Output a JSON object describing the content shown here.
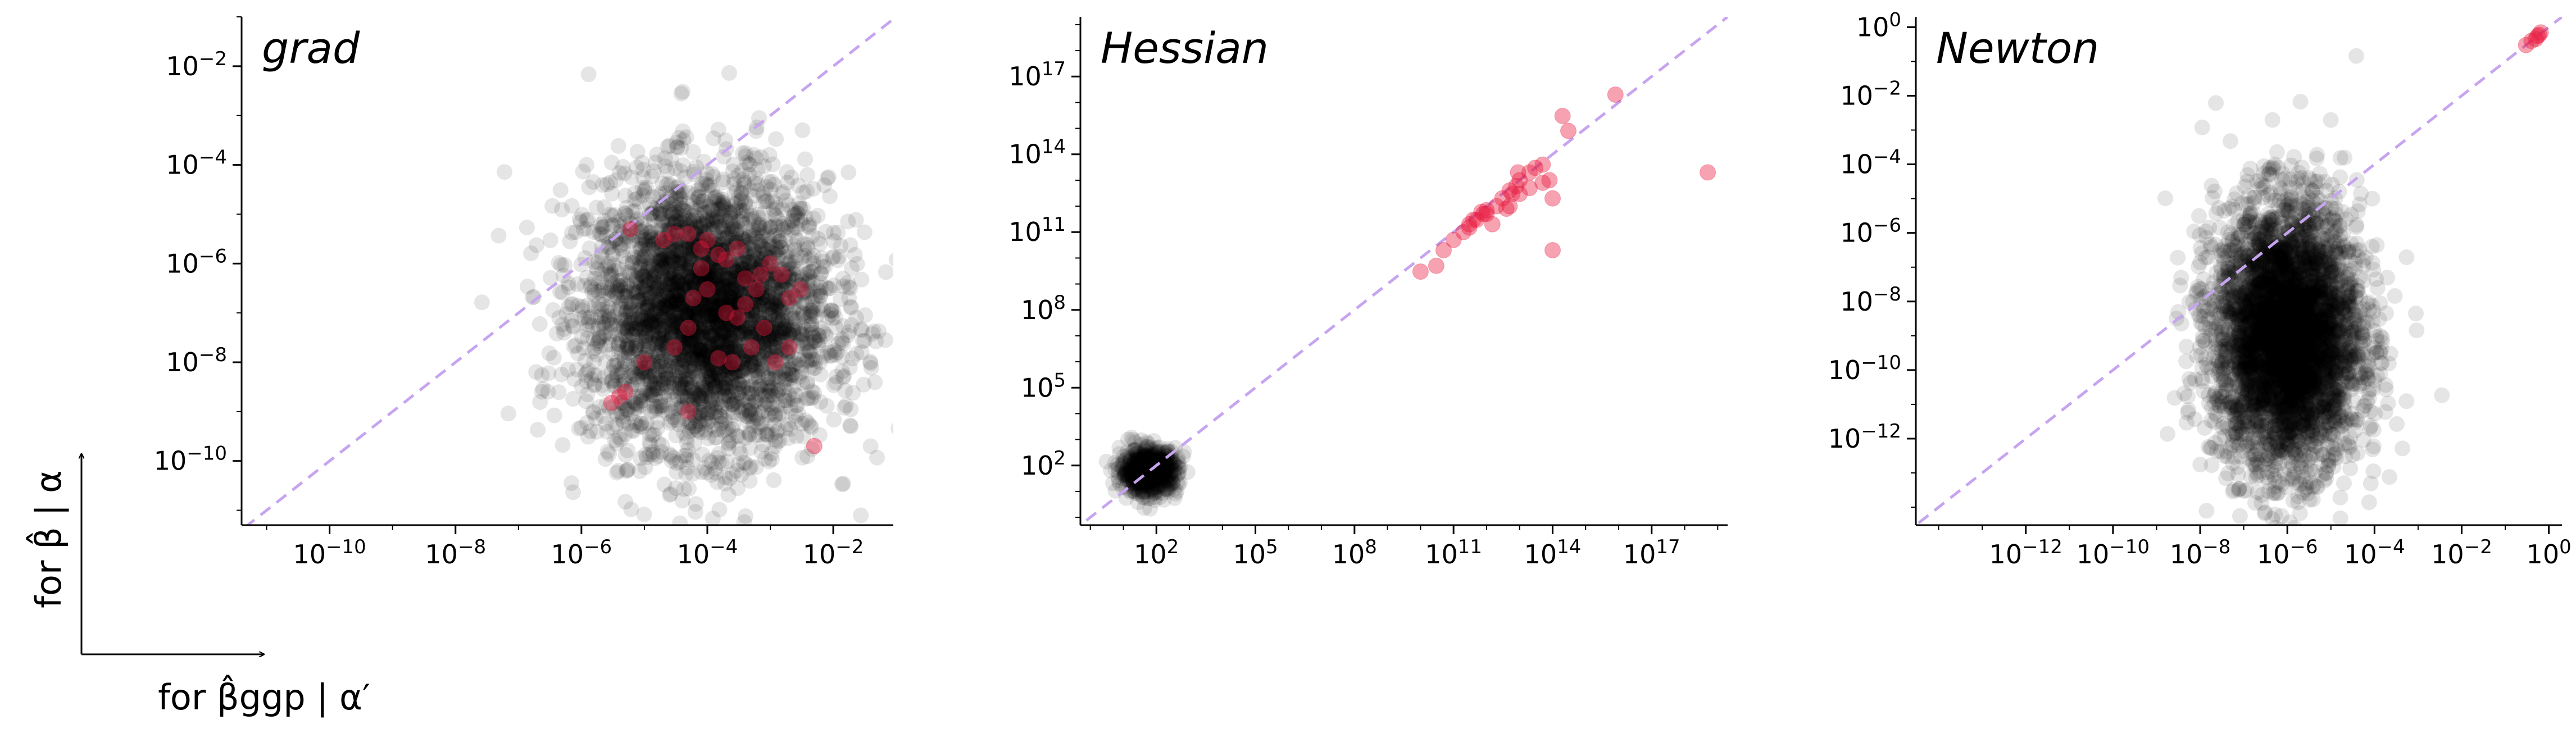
{
  "colors": {
    "background_points": "#000000",
    "highlight_points": "#e8173c",
    "identity_line": "#c7a4f0"
  },
  "axis_annotation": {
    "y_text": "for β̂ | α",
    "x_text": "for β̂ggp | α′"
  },
  "chart_data": [
    {
      "type": "scatter",
      "title": "grad",
      "xscale": "log",
      "yscale": "log",
      "xlim": [
        4e-12,
        0.09
      ],
      "ylim": [
        5e-12,
        0.1
      ],
      "x_ticks": [
        "10^-10",
        "10^-8",
        "10^-6",
        "10^-4",
        "10^-2"
      ],
      "y_ticks": [
        "10^-10",
        "10^-8",
        "10^-6",
        "10^-4",
        "10^-2"
      ],
      "reference_line": "y = x",
      "grid": false,
      "legend": "none",
      "series": [
        {
          "role": "background",
          "cloud": {
            "x_range": [
              1e-06,
              0.01
            ],
            "y_range": [
              1e-10,
              5e-05
            ],
            "center": [
              0.0001,
              1e-07
            ],
            "count": 4000
          }
        },
        {
          "role": "highlight",
          "points": [
            [
              6e-06,
              5e-06
            ],
            [
              2e-05,
              3e-06
            ],
            [
              3e-05,
              4e-06
            ],
            [
              5e-05,
              4e-06
            ],
            [
              8e-05,
              2e-06
            ],
            [
              0.0001,
              3e-06
            ],
            [
              0.00015,
              1.5e-06
            ],
            [
              0.0002,
              1.2e-06
            ],
            [
              0.0003,
              2e-06
            ],
            [
              0.0004,
              5e-07
            ],
            [
              0.0006,
              3e-07
            ],
            [
              0.001,
              1e-06
            ],
            [
              0.0015,
              6e-07
            ],
            [
              0.002,
              2e-07
            ],
            [
              0.003,
              3e-07
            ],
            [
              0.0001,
              3e-07
            ],
            [
              0.0002,
              1e-07
            ],
            [
              5e-05,
              5e-08
            ],
            [
              3e-05,
              2e-08
            ],
            [
              0.00015,
              1.2e-08
            ],
            [
              0.00025,
              1e-08
            ],
            [
              0.0005,
              2e-08
            ],
            [
              0.0008,
              5e-08
            ],
            [
              0.0012,
              1e-08
            ],
            [
              0.002,
              2e-08
            ],
            [
              0.0003,
              8e-08
            ],
            [
              6e-05,
              2e-07
            ],
            [
              8e-05,
              8e-07
            ],
            [
              0.0004,
              1.5e-07
            ],
            [
              0.0007,
              6e-07
            ],
            [
              1e-05,
              1e-08
            ],
            [
              5e-06,
              2.5e-09
            ],
            [
              3e-06,
              1.5e-09
            ],
            [
              4e-06,
              2e-09
            ],
            [
              5e-05,
              1e-09
            ],
            [
              0.005,
              2e-10
            ]
          ]
        }
      ]
    },
    {
      "type": "scatter",
      "title": "Hessian",
      "xscale": "log",
      "yscale": "log",
      "xlim": [
        0.5,
        2e+19
      ],
      "ylim": [
        0.5,
        2e+19
      ],
      "x_ticks": [
        "10^2",
        "10^5",
        "10^8",
        "10^11",
        "10^14",
        "10^17"
      ],
      "y_ticks": [
        "10^2",
        "10^5",
        "10^8",
        "10^11",
        "10^14",
        "10^17"
      ],
      "reference_line": "y = x",
      "grid": false,
      "legend": "none",
      "series": [
        {
          "role": "background",
          "cloud": {
            "x_range": [
              8,
              500
            ],
            "y_range": [
              8,
              500
            ],
            "center": [
              60,
              60
            ],
            "count": 700
          }
        },
        {
          "role": "highlight",
          "points": [
            [
              10000000000.0,
              3000000000.0
            ],
            [
              30000000000.0,
              5000000000.0
            ],
            [
              50000000000.0,
              20000000000.0
            ],
            [
              100000000000.0,
              50000000000.0
            ],
            [
              200000000000.0,
              100000000000.0
            ],
            [
              300000000000.0,
              200000000000.0
            ],
            [
              500000000000.0,
              300000000000.0
            ],
            [
              800000000000.0,
              500000000000.0
            ],
            [
              1000000000000.0,
              700000000000.0
            ],
            [
              2000000000000.0,
              1000000000000.0
            ],
            [
              3000000000000.0,
              2000000000000.0
            ],
            [
              5000000000000.0,
              4000000000000.0
            ],
            [
              8000000000000.0,
              6000000000000.0
            ],
            [
              10000000000000.0,
              10000000000000.0
            ],
            [
              20000000000000.0,
              20000000000000.0
            ],
            [
              30000000000000.0,
              30000000000000.0
            ],
            [
              50000000000000.0,
              40000000000000.0
            ],
            [
              1000000000000.0,
              500000000000.0
            ],
            [
              400000000000.0,
              300000000000.0
            ],
            [
              700000000000.0,
              600000000000.0
            ],
            [
              1500000000000.0,
              200000000000.0
            ],
            [
              4000000000000.0,
              800000000000.0
            ],
            [
              10000000000000.0,
              3000000000000.0
            ],
            [
              20000000000000.0,
              5000000000000.0
            ],
            [
              50000000000000.0,
              8000000000000.0
            ],
            [
              80000000000000.0,
              10000000000000.0
            ],
            [
              100000000000000.0,
              2000000000000.0
            ],
            [
              100000000000000.0,
              20000000000.0
            ],
            [
              200000000000000.0,
              3000000000000000.0
            ],
            [
              300000000000000.0,
              800000000000000.0
            ],
            [
              8000000000000000.0,
              2e+16
            ],
            [
              5e+18,
              20000000000000.0
            ],
            [
              5000000000000.0,
              1000000000000.0
            ],
            [
              300000000000.0,
              150000000000.0
            ],
            [
              6000000000000.0,
              3000000000000.0
            ],
            [
              9000000000000.0,
              20000000000000.0
            ]
          ]
        }
      ]
    },
    {
      "type": "scatter",
      "title": "Newton",
      "xscale": "log",
      "yscale": "log",
      "xlim": [
        3e-15,
        2
      ],
      "ylim": [
        3e-15,
        2
      ],
      "x_ticks": [
        "10^-12",
        "10^-10",
        "10^-8",
        "10^-6",
        "10^-4",
        "10^-2",
        "10^0"
      ],
      "y_ticks": [
        "10^-12",
        "10^-10",
        "10^-8",
        "10^-6",
        "10^-4",
        "10^-2",
        "10^0"
      ],
      "reference_line": "y = x",
      "grid": false,
      "legend": "none",
      "series": [
        {
          "role": "background",
          "cloud": {
            "x_range": [
              1e-08,
              3e-05
            ],
            "y_range": [
              1e-13,
              1e-05
            ],
            "center": [
              1e-06,
              1e-09
            ],
            "count": 4500
          }
        },
        {
          "role": "highlight",
          "points": [
            [
              0.3,
              0.3
            ],
            [
              0.4,
              0.4
            ],
            [
              0.5,
              0.45
            ],
            [
              0.55,
              0.55
            ],
            [
              0.6,
              0.6
            ],
            [
              0.65,
              0.7
            ]
          ]
        }
      ]
    }
  ]
}
